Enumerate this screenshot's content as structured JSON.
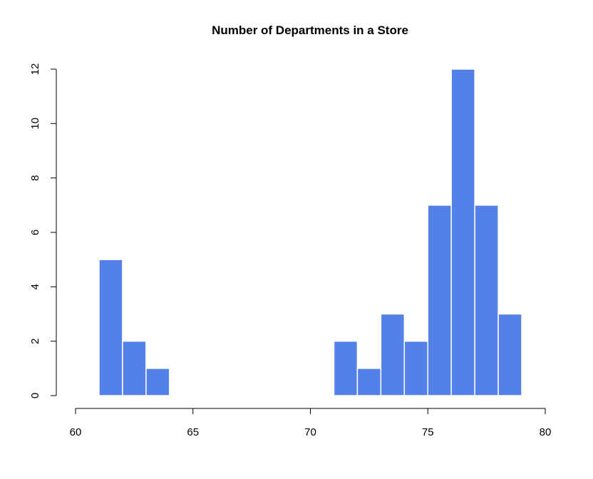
{
  "chart_data": {
    "type": "bar",
    "title": "Number of Departments in a Store",
    "xlabel": "",
    "ylabel": "",
    "bar_color": "#5381E9",
    "bar_edge_color": "#FFFFFF",
    "bins": [
      {
        "start": 61,
        "end": 62,
        "count": 5
      },
      {
        "start": 62,
        "end": 63,
        "count": 2
      },
      {
        "start": 63,
        "end": 64,
        "count": 1
      },
      {
        "start": 71,
        "end": 72,
        "count": 2
      },
      {
        "start": 72,
        "end": 73,
        "count": 1
      },
      {
        "start": 73,
        "end": 74,
        "count": 3
      },
      {
        "start": 74,
        "end": 75,
        "count": 2
      },
      {
        "start": 75,
        "end": 76,
        "count": 7
      },
      {
        "start": 76,
        "end": 77,
        "count": 12
      },
      {
        "start": 77,
        "end": 78,
        "count": 7
      },
      {
        "start": 78,
        "end": 79,
        "count": 3
      }
    ],
    "xlim": [
      60,
      80
    ],
    "ylim": [
      0,
      12
    ],
    "x_ticks": [
      60,
      65,
      70,
      75,
      80
    ],
    "x_tick_labels": [
      "60",
      "65",
      "70",
      "75",
      "80"
    ],
    "y_ticks": [
      0,
      2,
      4,
      6,
      8,
      10,
      12
    ],
    "y_tick_labels": [
      "0",
      "2",
      "4",
      "6",
      "8",
      "10",
      "12"
    ],
    "grid": false,
    "legend": "none"
  }
}
